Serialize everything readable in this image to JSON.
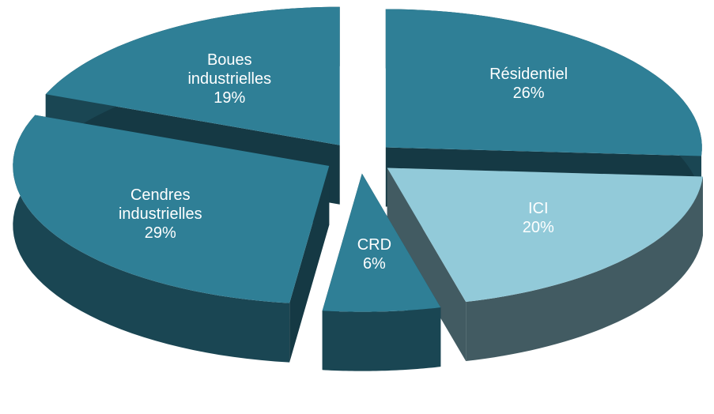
{
  "chart_data": {
    "type": "pie",
    "categories": [
      "Résidentiel",
      "ICI",
      "CRD",
      "Cendres industrielles",
      "Boues industrielles"
    ],
    "values": [
      26,
      20,
      6,
      29,
      19
    ],
    "value_labels": [
      "26%",
      "20%",
      "6%",
      "29%",
      "19%"
    ],
    "colors": [
      "#2f7f96",
      "#92cad9",
      "#2f7f96",
      "#2f7f96",
      "#2f7f96"
    ]
  }
}
